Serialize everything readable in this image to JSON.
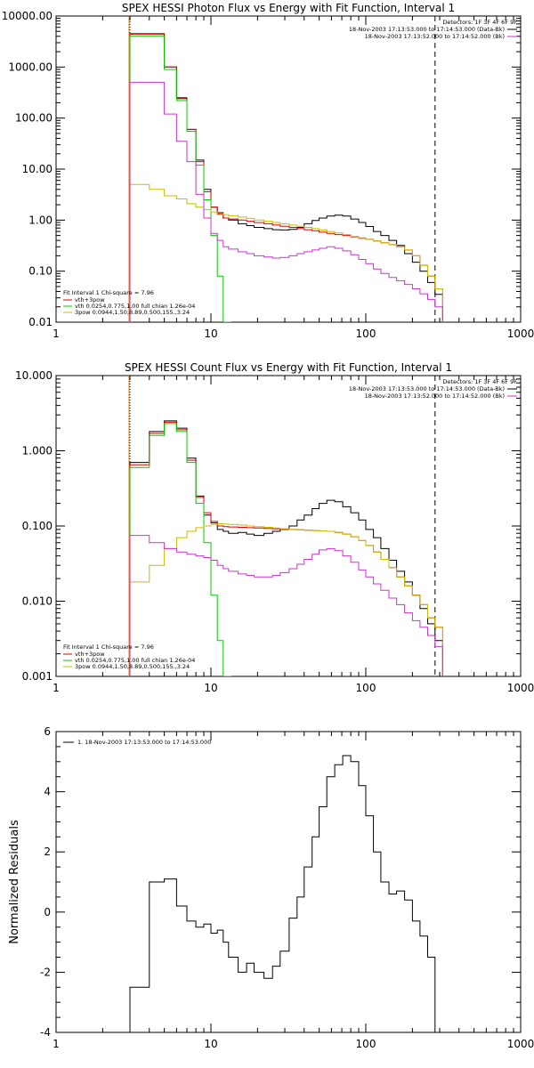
{
  "chart_data": [
    {
      "type": "line",
      "title": "SPEX HESSI Photon Flux vs Energy with Fit Function, Interval 1",
      "xscale": "log",
      "yscale": "log",
      "xlim": [
        1,
        1000
      ],
      "ylim": [
        0.01,
        10000
      ],
      "x_ticks": [
        1,
        10,
        100,
        1000
      ],
      "x_tick_labels": [
        "1",
        "10",
        "100",
        "1000"
      ],
      "y_ticks": [
        0.01,
        0.1,
        1,
        10,
        100,
        1000,
        10000
      ],
      "y_tick_labels": [
        "0.01",
        "0.10",
        "1.00",
        "10.00",
        "100.00",
        "1000.00",
        "10000.00"
      ],
      "legend_top_right": {
        "detectors": "Detectors: 1F 3F 4F 6F 9F",
        "lines": [
          {
            "text": "18-Nov-2003 17:13:53.000 to 17:14:53.000 (Data-Bk)",
            "color": "#000000"
          },
          {
            "text": "18-Nov-2003 17:13:52.000 to 17:14:52.000 (Bk)",
            "color": "#cc33cc"
          }
        ]
      },
      "legend_bottom_left": {
        "header": "Fit Interval 1    Chi-square = 7.96",
        "lines": [
          {
            "text": "vth+3pow",
            "color": "#dd0000"
          },
          {
            "text": "vth 0.0254,0.775,1.00  full chian 1.26e-04",
            "color": "#00cc00"
          },
          {
            "text": "3pow 0.0944,1.50,8.89,0.500,155.,3.24",
            "color": "#ccbb00"
          }
        ]
      },
      "vlines": [
        {
          "x": 3,
          "style": "dotted",
          "color": "#000000"
        },
        {
          "x": 3,
          "style": "solid",
          "color": "#ee7700"
        },
        {
          "x": 280,
          "style": "dashed",
          "color": "#000000"
        }
      ],
      "series": [
        {
          "color": "#000000",
          "x": [
            3,
            4,
            5,
            6,
            7,
            8,
            9,
            10,
            11,
            12,
            13,
            15,
            17,
            19,
            22,
            25,
            28,
            32,
            36,
            40,
            45,
            50,
            56,
            63,
            71,
            80,
            90,
            100,
            112,
            125,
            141,
            158,
            178,
            200,
            224,
            251,
            280
          ],
          "y": [
            4500,
            4500,
            1000,
            250,
            60,
            15,
            4,
            1.8,
            1.4,
            1.1,
            1.0,
            0.85,
            0.78,
            0.72,
            0.68,
            0.65,
            0.64,
            0.66,
            0.72,
            0.85,
            0.98,
            1.1,
            1.2,
            1.25,
            1.2,
            1.05,
            0.9,
            0.75,
            0.6,
            0.5,
            0.4,
            0.32,
            0.22,
            0.15,
            0.1,
            0.06,
            0.035
          ]
        },
        {
          "color": "#dd0000",
          "x": [
            3,
            4,
            5,
            6,
            7,
            8,
            9,
            10,
            11,
            12,
            13,
            15,
            17,
            19,
            22,
            25,
            28,
            32,
            36,
            40,
            45,
            50,
            56,
            63,
            71,
            80,
            90,
            100,
            112,
            125,
            141,
            158,
            178,
            200,
            224,
            251,
            280
          ],
          "y": [
            4400,
            4400,
            1000,
            240,
            60,
            14,
            3.6,
            1.8,
            1.3,
            1.1,
            1.05,
            1.0,
            0.95,
            0.9,
            0.85,
            0.8,
            0.76,
            0.72,
            0.68,
            0.65,
            0.62,
            0.58,
            0.55,
            0.52,
            0.5,
            0.47,
            0.44,
            0.42,
            0.39,
            0.36,
            0.33,
            0.3,
            0.26,
            0.2,
            0.13,
            0.08,
            0.045
          ]
        },
        {
          "color": "#00cc00",
          "x": [
            3,
            4,
            5,
            6,
            7,
            8,
            9,
            10,
            11,
            12
          ],
          "y": [
            4000,
            4000,
            900,
            220,
            55,
            12,
            2.5,
            0.5,
            0.08,
            0.01
          ]
        },
        {
          "color": "#ccbb00",
          "x": [
            3,
            4,
            5,
            6,
            7,
            8,
            9,
            10,
            11,
            12,
            13,
            15,
            17,
            19,
            22,
            25,
            28,
            32,
            36,
            40,
            45,
            50,
            56,
            63,
            71,
            80,
            90,
            100,
            112,
            125,
            141,
            158,
            178,
            200,
            224,
            251,
            280
          ],
          "y": [
            5,
            4,
            3,
            2.6,
            2.1,
            1.8,
            1.6,
            1.45,
            1.35,
            1.28,
            1.22,
            1.15,
            1.08,
            1.0,
            0.95,
            0.9,
            0.85,
            0.8,
            0.76,
            0.72,
            0.68,
            0.64,
            0.6,
            0.56,
            0.52,
            0.48,
            0.45,
            0.42,
            0.39,
            0.36,
            0.33,
            0.3,
            0.26,
            0.2,
            0.13,
            0.08,
            0.045
          ]
        },
        {
          "color": "#cc33cc",
          "x": [
            3,
            4,
            5,
            6,
            7,
            8,
            9,
            10,
            11,
            12,
            13,
            15,
            17,
            19,
            22,
            25,
            28,
            32,
            36,
            40,
            45,
            50,
            56,
            63,
            71,
            80,
            90,
            100,
            112,
            125,
            141,
            158,
            178,
            200,
            224,
            251,
            280
          ],
          "y": [
            500,
            500,
            120,
            35,
            14,
            3.2,
            1.1,
            0.55,
            0.4,
            0.3,
            0.27,
            0.24,
            0.22,
            0.2,
            0.19,
            0.18,
            0.185,
            0.2,
            0.22,
            0.24,
            0.26,
            0.28,
            0.3,
            0.28,
            0.25,
            0.21,
            0.17,
            0.14,
            0.11,
            0.09,
            0.075,
            0.065,
            0.055,
            0.045,
            0.036,
            0.028,
            0.02
          ]
        }
      ]
    },
    {
      "type": "line",
      "title": "SPEX HESSI Count Flux vs Energy with Fit Function, Interval 1",
      "xscale": "log",
      "yscale": "log",
      "xlim": [
        1,
        1000
      ],
      "ylim": [
        0.001,
        10
      ],
      "x_ticks": [
        1,
        10,
        100,
        1000
      ],
      "x_tick_labels": [
        "1",
        "10",
        "100",
        "1000"
      ],
      "y_ticks": [
        0.001,
        0.01,
        0.1,
        1,
        10
      ],
      "y_tick_labels": [
        "0.001",
        "0.010",
        "0.100",
        "1.000",
        "10.000"
      ],
      "legend_top_right": {
        "detectors": "Detectors: 1F 3F 4F 6F 9F",
        "lines": [
          {
            "text": "18-Nov-2003 17:13:53.000 to 17:14:53.000 (Data-Bk)",
            "color": "#000000"
          },
          {
            "text": "18-Nov-2003 17:13:52.000 to 17:14:52.000 (Bk)",
            "color": "#cc33cc"
          }
        ]
      },
      "legend_bottom_left": {
        "header": "Fit Interval 1    Chi-square = 7.96",
        "lines": [
          {
            "text": "vth+3pow",
            "color": "#dd0000"
          },
          {
            "text": "vth 0.0254,0.775,1.00  full chian 1.26e-04",
            "color": "#00cc00"
          },
          {
            "text": "3pow 0.0944,1.50,8.89,0.500,155.,3.24",
            "color": "#ccbb00"
          }
        ]
      },
      "vlines": [
        {
          "x": 3,
          "style": "dotted",
          "color": "#000000"
        },
        {
          "x": 3,
          "style": "solid",
          "color": "#ee7700"
        },
        {
          "x": 280,
          "style": "dashed",
          "color": "#000000"
        }
      ],
      "series": [
        {
          "color": "#000000",
          "x": [
            3,
            4,
            5,
            6,
            7,
            8,
            9,
            10,
            11,
            12,
            13,
            15,
            17,
            19,
            22,
            25,
            28,
            32,
            36,
            40,
            45,
            50,
            56,
            63,
            71,
            80,
            90,
            100,
            112,
            125,
            141,
            158,
            178,
            200,
            224,
            251,
            280
          ],
          "y": [
            0.7,
            1.8,
            2.5,
            2.0,
            0.8,
            0.25,
            0.14,
            0.11,
            0.09,
            0.085,
            0.08,
            0.082,
            0.078,
            0.075,
            0.08,
            0.085,
            0.09,
            0.1,
            0.12,
            0.14,
            0.17,
            0.2,
            0.22,
            0.21,
            0.18,
            0.15,
            0.12,
            0.09,
            0.07,
            0.05,
            0.035,
            0.025,
            0.018,
            0.012,
            0.008,
            0.005,
            0.003
          ]
        },
        {
          "color": "#dd0000",
          "x": [
            3,
            4,
            5,
            6,
            7,
            8,
            9,
            10,
            11,
            12,
            13,
            15,
            17,
            19,
            22,
            25,
            28,
            32,
            36,
            40,
            45,
            50,
            56,
            63,
            71,
            80,
            90,
            100,
            112,
            125,
            141,
            158,
            178,
            200,
            224,
            251,
            280
          ],
          "y": [
            0.65,
            1.7,
            2.4,
            1.9,
            0.75,
            0.24,
            0.15,
            0.115,
            0.1,
            0.098,
            0.097,
            0.096,
            0.095,
            0.094,
            0.093,
            0.092,
            0.091,
            0.09,
            0.089,
            0.088,
            0.087,
            0.086,
            0.085,
            0.082,
            0.078,
            0.072,
            0.064,
            0.055,
            0.045,
            0.036,
            0.028,
            0.021,
            0.016,
            0.012,
            0.009,
            0.006,
            0.0045
          ]
        },
        {
          "color": "#00cc00",
          "x": [
            3,
            4,
            5,
            6,
            7,
            8,
            9,
            10,
            11,
            12
          ],
          "y": [
            0.6,
            1.6,
            2.3,
            1.8,
            0.7,
            0.2,
            0.06,
            0.012,
            0.003,
            0.001
          ]
        },
        {
          "color": "#ccbb00",
          "x": [
            3,
            4,
            5,
            6,
            7,
            8,
            9,
            10,
            11,
            12,
            13,
            15,
            17,
            19,
            22,
            25,
            28,
            32,
            36,
            40,
            45,
            50,
            56,
            63,
            71,
            80,
            90,
            100,
            112,
            125,
            141,
            158,
            178,
            200,
            224,
            251,
            280
          ],
          "y": [
            0.018,
            0.03,
            0.05,
            0.07,
            0.085,
            0.095,
            0.1,
            0.105,
            0.107,
            0.106,
            0.105,
            0.103,
            0.1,
            0.098,
            0.096,
            0.094,
            0.092,
            0.09,
            0.089,
            0.088,
            0.087,
            0.086,
            0.085,
            0.082,
            0.078,
            0.072,
            0.064,
            0.055,
            0.045,
            0.036,
            0.028,
            0.021,
            0.016,
            0.012,
            0.009,
            0.006,
            0.0045
          ]
        },
        {
          "color": "#cc33cc",
          "x": [
            3,
            4,
            5,
            6,
            7,
            8,
            9,
            10,
            11,
            12,
            13,
            15,
            17,
            19,
            22,
            25,
            28,
            32,
            36,
            40,
            45,
            50,
            56,
            63,
            71,
            80,
            90,
            100,
            112,
            125,
            141,
            158,
            178,
            200,
            224,
            251,
            280
          ],
          "y": [
            0.075,
            0.06,
            0.05,
            0.045,
            0.042,
            0.04,
            0.038,
            0.035,
            0.03,
            0.027,
            0.025,
            0.023,
            0.022,
            0.021,
            0.021,
            0.022,
            0.024,
            0.027,
            0.031,
            0.036,
            0.042,
            0.048,
            0.05,
            0.047,
            0.04,
            0.033,
            0.026,
            0.021,
            0.017,
            0.014,
            0.011,
            0.009,
            0.007,
            0.0055,
            0.0045,
            0.0035,
            0.0025
          ]
        }
      ]
    },
    {
      "type": "line",
      "title": "",
      "ylabel": "Normalized Residuals",
      "xscale": "log",
      "yscale": "linear",
      "xlim": [
        1,
        1000
      ],
      "ylim": [
        -4,
        6
      ],
      "x_ticks": [
        1,
        10,
        100,
        1000
      ],
      "x_tick_labels": [
        "1",
        "10",
        "100",
        "1000"
      ],
      "y_ticks": [
        -4,
        -2,
        0,
        2,
        4,
        6
      ],
      "y_tick_labels": [
        "-4",
        "-2",
        "0",
        "2",
        "4",
        "6"
      ],
      "legend_top_left": {
        "lines": [
          {
            "text": "1. 18-Nov-2003 17:13:53.000 to 17:14:53.000",
            "color": "#000000"
          }
        ]
      },
      "series": [
        {
          "color": "#000000",
          "x": [
            3,
            4,
            5,
            6,
            7,
            8,
            9,
            10,
            11,
            12,
            13,
            15,
            17,
            19,
            22,
            25,
            28,
            32,
            36,
            40,
            45,
            50,
            56,
            63,
            71,
            80,
            90,
            100,
            112,
            125,
            141,
            158,
            178,
            200,
            224,
            251,
            280
          ],
          "y": [
            -2.5,
            1.0,
            1.1,
            0.2,
            -0.3,
            -0.5,
            -0.4,
            -0.7,
            -0.6,
            -1.0,
            -1.5,
            -2.0,
            -1.7,
            -2.0,
            -2.2,
            -1.8,
            -1.3,
            -0.2,
            0.5,
            1.5,
            2.5,
            3.5,
            4.5,
            4.9,
            5.2,
            5.0,
            4.2,
            3.2,
            2.0,
            1.0,
            0.6,
            0.7,
            0.4,
            -0.3,
            -0.8,
            -1.5,
            -4.0
          ]
        }
      ]
    }
  ]
}
